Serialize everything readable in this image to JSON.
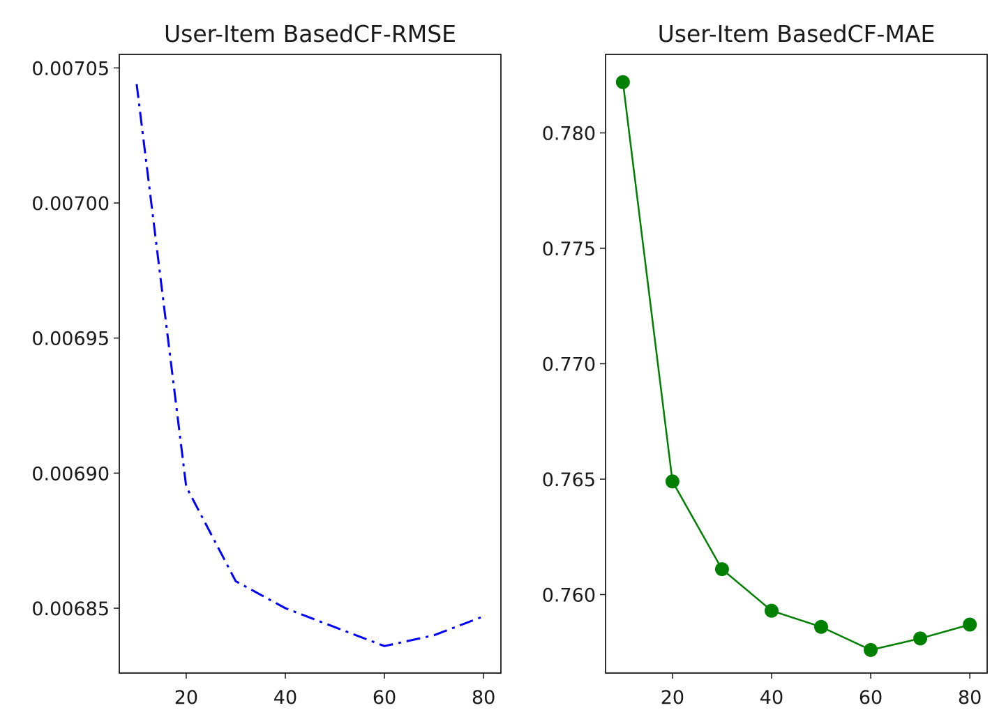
{
  "chart_data": [
    {
      "type": "line",
      "title": "User-Item BasedCF-RMSE",
      "xlabel": "",
      "ylabel": "",
      "x": [
        10,
        20,
        30,
        40,
        50,
        60,
        70,
        80
      ],
      "series": [
        {
          "values": [
            0.007044,
            0.006895,
            0.00686,
            0.00685,
            0.006843,
            0.006836,
            0.00684,
            0.006847
          ],
          "color": "#0000ff",
          "line_style": "dashdot",
          "markers": false
        }
      ],
      "xlim": [
        6.5,
        83.5
      ],
      "ylim": [
        0.006826,
        0.007055
      ],
      "xticks": [
        20,
        40,
        60,
        80
      ],
      "xtick_labels": [
        "20",
        "40",
        "60",
        "80"
      ],
      "yticks": [
        0.00685,
        0.0069,
        0.00695,
        0.007,
        0.00705
      ],
      "ytick_labels": [
        "0.00685",
        "0.00690",
        "0.00695",
        "0.00700",
        "0.00705"
      ],
      "grid": false,
      "legend": null
    },
    {
      "type": "line",
      "title": "User-Item BasedCF-MAE",
      "xlabel": "",
      "ylabel": "",
      "x": [
        10,
        20,
        30,
        40,
        50,
        60,
        70,
        80
      ],
      "series": [
        {
          "values": [
            0.7822,
            0.7649,
            0.7611,
            0.7593,
            0.7586,
            0.7576,
            0.7581,
            0.7587
          ],
          "color": "#008000",
          "line_style": "solid",
          "markers": true
        }
      ],
      "xlim": [
        6.5,
        83.5
      ],
      "ylim": [
        0.7566,
        0.7834
      ],
      "xticks": [
        20,
        40,
        60,
        80
      ],
      "xtick_labels": [
        "20",
        "40",
        "60",
        "80"
      ],
      "yticks": [
        0.76,
        0.765,
        0.77,
        0.775,
        0.78
      ],
      "ytick_labels": [
        "0.760",
        "0.765",
        "0.770",
        "0.775",
        "0.780"
      ],
      "grid": false,
      "legend": null
    }
  ]
}
